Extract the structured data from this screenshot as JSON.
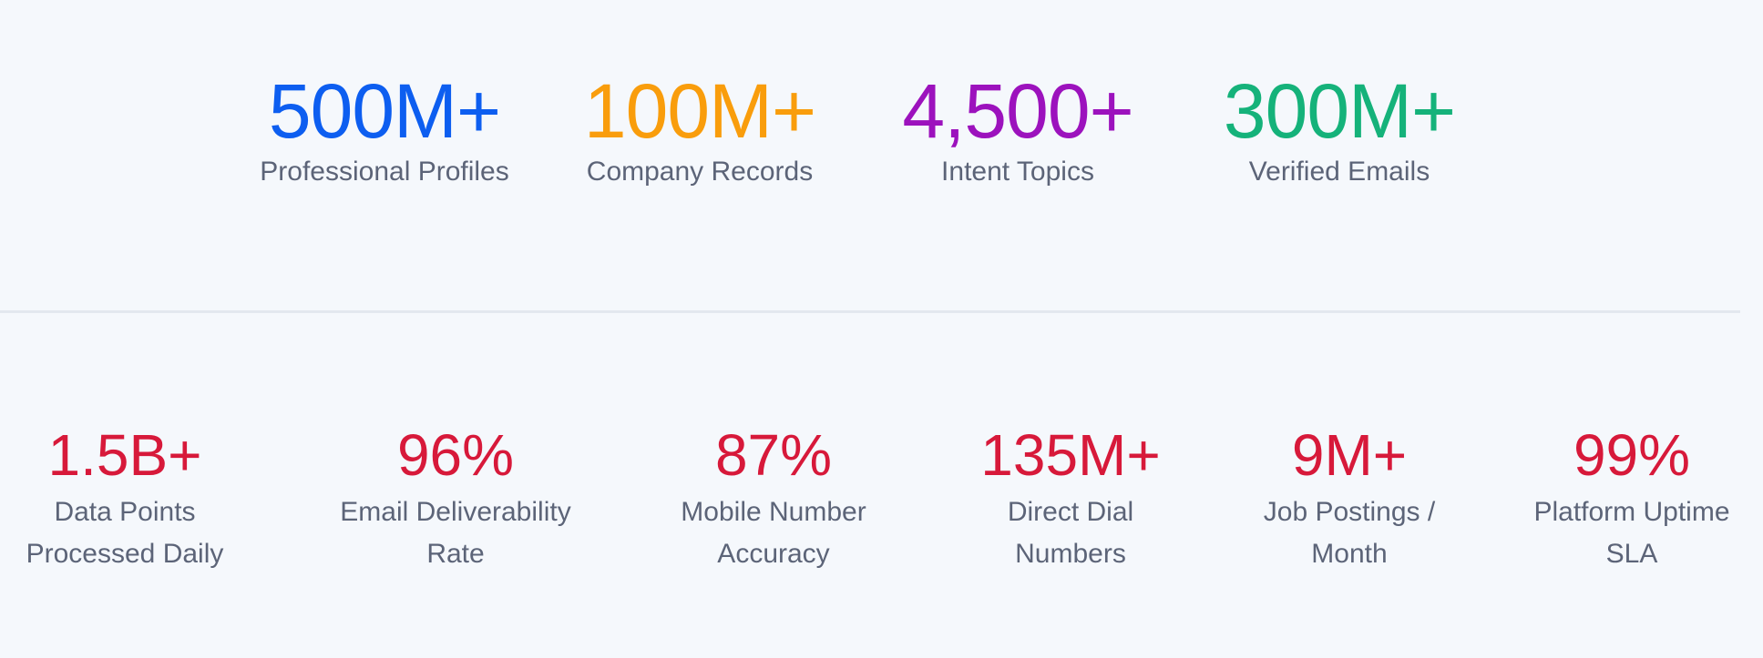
{
  "top_stats": [
    {
      "value": "500M+",
      "label": "Professional Profiles"
    },
    {
      "value": "100M+",
      "label": "Company Records"
    },
    {
      "value": "4,500+",
      "label": "Intent Topics"
    },
    {
      "value": "300M+",
      "label": "Verified Emails"
    }
  ],
  "bottom_stats": [
    {
      "value": "1.5B+",
      "label": [
        "Data Points",
        "Processed Daily"
      ]
    },
    {
      "value": "96%",
      "label": [
        "Email Deliverability",
        "Rate"
      ]
    },
    {
      "value": "87%",
      "label": [
        "Mobile Number",
        "Accuracy"
      ]
    },
    {
      "value": "135M+",
      "label": [
        "Direct Dial",
        "Numbers"
      ]
    },
    {
      "value": "9M+",
      "label": [
        "Job Postings /",
        "Month"
      ]
    },
    {
      "value": "99%",
      "label": [
        "Platform Uptime",
        "SLA"
      ]
    }
  ]
}
